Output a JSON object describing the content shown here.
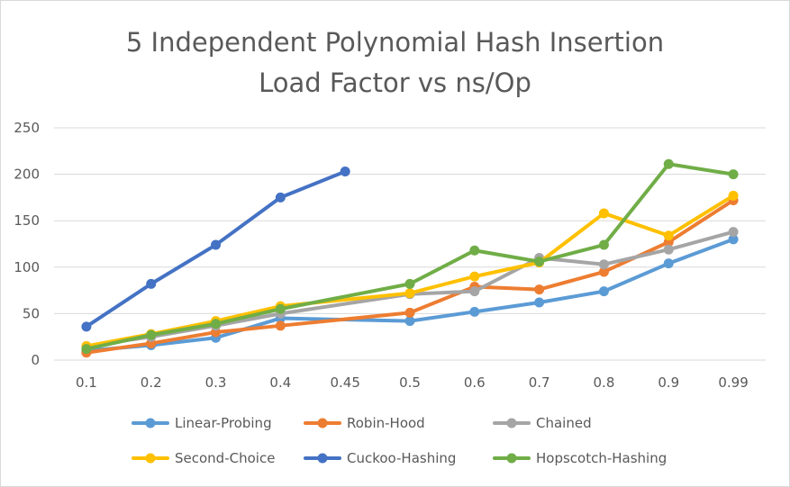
{
  "chart_data": {
    "type": "line",
    "title": [
      "5 Independent Polynomial Hash Insertion",
      "Load Factor vs ns/Op"
    ],
    "xlabel": "",
    "ylabel": "",
    "categories": [
      "0.1",
      "0.2",
      "0.3",
      "0.4",
      "0.45",
      "0.5",
      "0.6",
      "0.7",
      "0.8",
      "0.9",
      "0.99"
    ],
    "ylim": [
      0,
      250
    ],
    "yticks": [
      0,
      50,
      100,
      150,
      200,
      250
    ],
    "grid": true,
    "legend_position": "bottom",
    "series": [
      {
        "name": "Linear-Probing",
        "color": "#5b9bd5",
        "values": [
          10,
          16,
          24,
          45,
          null,
          42,
          52,
          62,
          74,
          104,
          130
        ]
      },
      {
        "name": "Robin-Hood",
        "color": "#ed7d31",
        "values": [
          8,
          18,
          30,
          37,
          null,
          51,
          79,
          76,
          95,
          127,
          172
        ]
      },
      {
        "name": "Chained",
        "color": "#a5a5a5",
        "values": [
          15,
          25,
          37,
          50,
          null,
          71,
          74,
          110,
          103,
          119,
          138
        ]
      },
      {
        "name": "Second-Choice",
        "color": "#ffc000",
        "values": [
          15,
          28,
          42,
          58,
          null,
          72,
          90,
          105,
          158,
          134,
          177
        ]
      },
      {
        "name": "Cuckoo-Hashing",
        "color": "#4472c4",
        "values": [
          36,
          82,
          124,
          175,
          203,
          null,
          null,
          null,
          null,
          null,
          null
        ]
      },
      {
        "name": "Hopscotch-Hashing",
        "color": "#70ad47",
        "values": [
          12,
          27,
          39,
          55,
          null,
          82,
          118,
          106,
          124,
          211,
          200
        ]
      }
    ]
  }
}
